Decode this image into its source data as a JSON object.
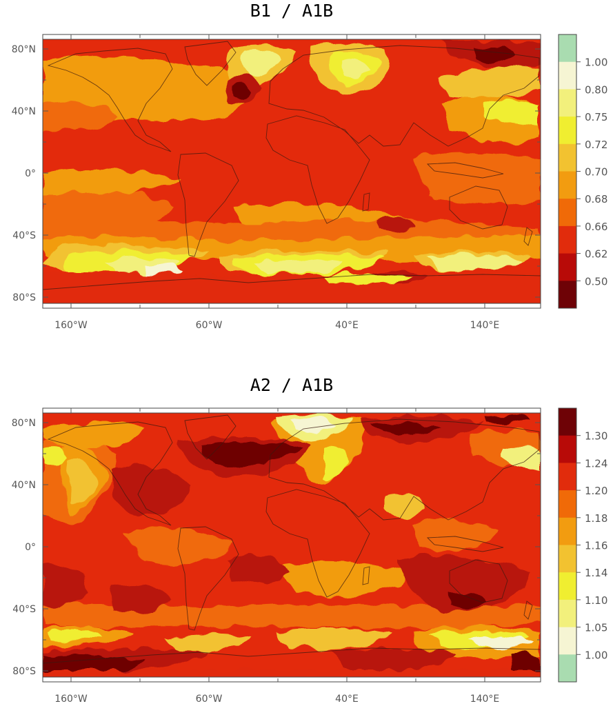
{
  "panels": [
    {
      "id": "top",
      "title": "B1 / A1B",
      "colorbar_labels": [
        "1.00",
        "0.80",
        "0.75",
        "0.72",
        "0.70",
        "0.68",
        "0.66",
        "0.62",
        "0.50"
      ],
      "colorbar_colors": [
        "#a9dcb0",
        "#f6f5d3",
        "#f2f07c",
        "#f0ee30",
        "#f2c230",
        "#f29c10",
        "#f06a08",
        "#e12c0c",
        "#b80a08",
        "#6e0206"
      ],
      "map_colors": {
        "base": "#e32a0c",
        "dark": "#b8140a",
        "darkest": "#6e0206",
        "orange": "#f06a08",
        "light_orange": "#f29c10",
        "gold": "#f2c230",
        "yellow": "#f0ee30",
        "pale_yellow": "#f2f07c",
        "cream": "#f6f5d3"
      }
    },
    {
      "id": "bottom",
      "title": "A2 / A1B",
      "colorbar_labels": [
        "1.30",
        "1.24",
        "1.20",
        "1.18",
        "1.16",
        "1.14",
        "1.10",
        "1.05",
        "1.00"
      ],
      "colorbar_colors": [
        "#6e0206",
        "#b80a08",
        "#e12c0c",
        "#f06a08",
        "#f29c10",
        "#f2c230",
        "#f0ee30",
        "#f2f07c",
        "#f6f5d3",
        "#a9dcb0"
      ],
      "map_colors": {
        "base": "#e32a0c",
        "dark": "#b8140a",
        "darkest": "#6e0206",
        "orange": "#f06a08",
        "light_orange": "#f29c10",
        "gold": "#f2c230",
        "yellow": "#f0ee30",
        "pale_yellow": "#f2f07c",
        "cream": "#f6f5d3"
      }
    }
  ],
  "lat_labels": [
    "80°N",
    "40°N",
    "0°",
    "40°S",
    "80°S"
  ],
  "lon_labels": [
    "160°W",
    "60°W",
    "40°E",
    "140°E"
  ]
}
